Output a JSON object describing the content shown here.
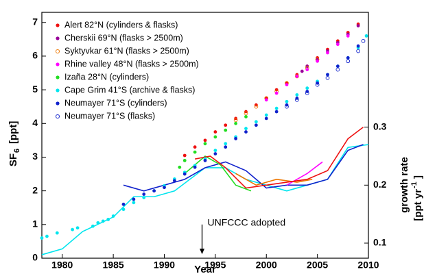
{
  "chart_data": {
    "type": "scatter",
    "x_label": "Year",
    "y_label": [
      "SF",
      "6",
      "[ppt]"
    ],
    "y2_label": [
      "growth rate",
      "[ppt yr",
      "-1",
      "]"
    ],
    "xlim": [
      1978,
      2010
    ],
    "xticks": [
      1980,
      1985,
      1990,
      1995,
      2000,
      2005,
      2010
    ],
    "ylim": [
      0,
      7.3
    ],
    "yticks": [
      0,
      1,
      2,
      3,
      4,
      5,
      6,
      7
    ],
    "y2lim": [
      0.074,
      0.498
    ],
    "y2ticks": [
      0.1,
      0.2,
      0.3
    ],
    "legend": "upper-left",
    "annotation": {
      "text": "UNFCCC adopted",
      "x": 1993.7,
      "y_from": 1.0,
      "y_to": 0.12
    },
    "series": [
      {
        "name": "Alert 82°N (cylinders & flasks)",
        "color": "#ee1111",
        "marker": "filled",
        "x": [
          1992,
          1993,
          1994,
          1995,
          1996,
          1997,
          1998,
          1999,
          2000,
          2001,
          2002,
          2003,
          2004,
          2005,
          2006,
          2007,
          2008,
          2009
        ],
        "values": [
          3.05,
          3.3,
          3.5,
          3.75,
          3.95,
          4.15,
          4.35,
          4.55,
          4.75,
          5.0,
          5.2,
          5.45,
          5.7,
          5.95,
          6.2,
          6.45,
          6.7,
          6.95
        ]
      },
      {
        "name": "Cherskii 69°N (flasks > 2500m)",
        "color": "#990099",
        "marker": "filled",
        "x": [
          2003.5,
          2004,
          2005,
          2006,
          2007,
          2008,
          2009
        ],
        "values": [
          5.55,
          5.7,
          5.9,
          6.15,
          6.4,
          6.65,
          6.9
        ]
      },
      {
        "name": "Syktyvkar 61°N (flasks > 2500m)",
        "color": "#ee7700",
        "marker": "open",
        "x": [
          1997,
          1998,
          1999,
          2000,
          2001,
          2002,
          2003,
          2004,
          2005
        ],
        "values": [
          4.1,
          4.3,
          4.5,
          4.75,
          4.95,
          5.2,
          5.4,
          5.65,
          5.9
        ]
      },
      {
        "name": "Rhine valley 48°N (flasks > 2500m)",
        "color": "#ff00ff",
        "marker": "filled",
        "x": [
          2000,
          2001,
          2002,
          2003,
          2004,
          2005,
          2006,
          2007,
          2008
        ],
        "values": [
          4.7,
          4.9,
          5.15,
          5.4,
          5.6,
          5.85,
          6.1,
          6.35,
          6.6
        ]
      },
      {
        "name": "Izaña 28°N (cylinders)",
        "color": "#22dd22",
        "marker": "filled",
        "x": [
          1991.5,
          1992,
          1993,
          1994,
          1995,
          1996,
          1997,
          1998
        ],
        "values": [
          2.7,
          2.9,
          3.15,
          3.4,
          3.6,
          3.8,
          4.0,
          4.2
        ]
      },
      {
        "name": "Cape Grim 41°S (archive & flasks)",
        "color": "#00e5ee",
        "marker": "filled",
        "x": [
          1978,
          1978.5,
          1979.5,
          1981,
          1981.5,
          1983,
          1983.5,
          1984,
          1984.5,
          1985,
          1986,
          1987,
          1988,
          1989,
          1990,
          1991,
          1992,
          1993,
          1994,
          1995,
          1996,
          1997,
          1998,
          1999,
          2000,
          2001,
          2002,
          2003,
          2004,
          2005,
          2006,
          2007,
          2008,
          2009,
          2009.8
        ],
        "values": [
          0.6,
          0.65,
          0.75,
          0.85,
          0.9,
          0.95,
          1.05,
          1.1,
          1.15,
          1.25,
          1.45,
          1.65,
          1.8,
          2.0,
          2.15,
          2.35,
          2.55,
          2.75,
          2.95,
          3.2,
          3.4,
          3.6,
          3.85,
          4.05,
          4.25,
          4.45,
          4.65,
          4.85,
          5.05,
          5.25,
          5.45,
          5.7,
          5.95,
          6.25,
          6.6
        ]
      },
      {
        "name": "Neumayer 71°S (cylinders)",
        "color": "#1122cc",
        "marker": "filled",
        "x": [
          1986,
          1987,
          1988,
          1989,
          1990,
          1991,
          1992,
          1993,
          1994,
          1995,
          1996,
          1997,
          1998,
          1999,
          2000,
          2001,
          2002,
          2003,
          2004,
          2005,
          2006,
          2007,
          2008,
          2009
        ],
        "values": [
          1.6,
          1.75,
          1.9,
          2.0,
          2.1,
          2.3,
          2.5,
          2.7,
          2.9,
          3.1,
          3.3,
          3.55,
          3.75,
          3.95,
          4.15,
          4.35,
          4.55,
          4.75,
          4.95,
          5.2,
          5.45,
          5.7,
          5.95,
          6.3
        ]
      },
      {
        "name": "Neumayer 71°S (flasks)",
        "color": "#1122cc",
        "marker": "open",
        "x": [
          2002,
          2003,
          2004,
          2005,
          2006,
          2007,
          2008,
          2009,
          2009.5
        ],
        "values": [
          4.5,
          4.7,
          4.9,
          5.15,
          5.35,
          5.6,
          5.85,
          6.15,
          6.45
        ]
      }
    ],
    "growth_series": [
      {
        "color": "#00e5ee",
        "axis": "y2",
        "x": [
          1978,
          1980,
          1982,
          1985,
          1987,
          1989,
          1991,
          1994,
          1996,
          1998,
          2000,
          2002,
          2004,
          2006,
          2008,
          2010
        ],
        "values": [
          0.08,
          0.09,
          0.12,
          0.145,
          0.18,
          0.18,
          0.19,
          0.23,
          0.23,
          0.21,
          0.2,
          0.19,
          0.2,
          0.21,
          0.265,
          0.27
        ]
      },
      {
        "color": "#1122cc",
        "axis": "y2",
        "x": [
          1986,
          1988,
          1990,
          1992,
          1994,
          1996,
          1998,
          2000,
          2002,
          2004,
          2006,
          2008,
          2009.5
        ],
        "values": [
          0.2,
          0.19,
          0.2,
          0.21,
          0.23,
          0.24,
          0.225,
          0.195,
          0.2,
          0.2,
          0.21,
          0.26,
          0.27
        ]
      },
      {
        "color": "#22dd22",
        "axis": "y2",
        "x": [
          1992,
          1994,
          1995.5,
          1997,
          1998.5
        ],
        "values": [
          0.22,
          0.25,
          0.235,
          0.2,
          0.19
        ]
      },
      {
        "color": "#ee7700",
        "axis": "y2",
        "x": [
          1997,
          1999,
          2001,
          2003,
          2004.5
        ],
        "values": [
          0.22,
          0.2,
          0.21,
          0.205,
          0.21
        ]
      },
      {
        "color": "#ff00ff",
        "axis": "y2",
        "x": [
          2002,
          2004,
          2005.5
        ],
        "values": [
          0.2,
          0.22,
          0.24
        ]
      },
      {
        "color": "#ee1111",
        "axis": "y2",
        "x": [
          1993,
          1994.5,
          1996,
          1998,
          2000,
          2002,
          2004,
          2006,
          2008,
          2009.5
        ],
        "values": [
          0.245,
          0.25,
          0.23,
          0.195,
          0.2,
          0.205,
          0.21,
          0.225,
          0.28,
          0.3
        ]
      }
    ]
  }
}
